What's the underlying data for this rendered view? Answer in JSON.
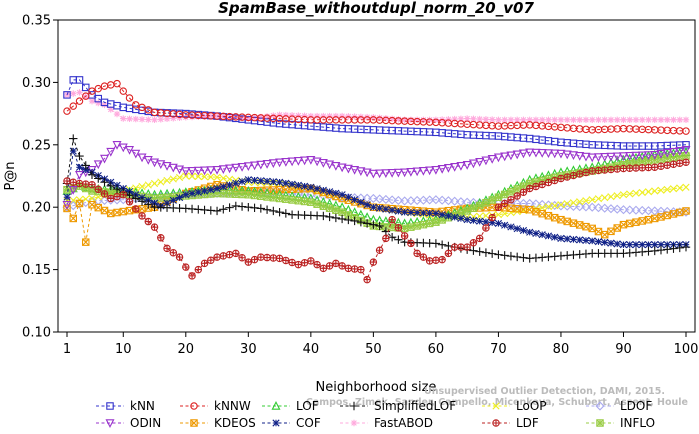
{
  "chart_data": {
    "type": "line",
    "title": "SpamBase_withoutdupl_norm_20_v07",
    "xlabel": "Neighborhood size",
    "ylabel": "P@n",
    "xlim": [
      1,
      100
    ],
    "ylim": [
      0.1,
      0.35
    ],
    "xticks": [
      "1",
      "10",
      "20",
      "30",
      "40",
      "50",
      "60",
      "70",
      "80",
      "90",
      "100"
    ],
    "yticks": [
      "0.10",
      "0.15",
      "0.20",
      "0.25",
      "0.30",
      "0.35"
    ],
    "watermark": [
      "Campos, Zimek, Sander, Campello, Micenkova, Schubert, Assent, Houle",
      "Unsupervised Outlier Detection, DAMI, 2015."
    ],
    "series": [
      {
        "name": "kNN",
        "color": "#3333cc",
        "marker": "square",
        "points": [
          [
            1,
            0.29
          ],
          [
            2,
            0.302
          ],
          [
            3,
            0.302
          ],
          [
            5,
            0.29
          ],
          [
            7,
            0.284
          ],
          [
            10,
            0.28
          ],
          [
            15,
            0.276
          ],
          [
            20,
            0.275
          ],
          [
            25,
            0.273
          ],
          [
            30,
            0.27
          ],
          [
            35,
            0.267
          ],
          [
            40,
            0.265
          ],
          [
            45,
            0.263
          ],
          [
            50,
            0.262
          ],
          [
            55,
            0.261
          ],
          [
            60,
            0.26
          ],
          [
            65,
            0.258
          ],
          [
            70,
            0.257
          ],
          [
            75,
            0.255
          ],
          [
            80,
            0.252
          ],
          [
            85,
            0.25
          ],
          [
            90,
            0.249
          ],
          [
            95,
            0.249
          ],
          [
            100,
            0.25
          ]
        ]
      },
      {
        "name": "kNNW",
        "color": "#dd2222",
        "marker": "circle",
        "points": [
          [
            1,
            0.277
          ],
          [
            2,
            0.281
          ],
          [
            3,
            0.285
          ],
          [
            5,
            0.293
          ],
          [
            7,
            0.297
          ],
          [
            9,
            0.299
          ],
          [
            10,
            0.293
          ],
          [
            12,
            0.282
          ],
          [
            15,
            0.276
          ],
          [
            20,
            0.274
          ],
          [
            30,
            0.272
          ],
          [
            40,
            0.27
          ],
          [
            50,
            0.27
          ],
          [
            60,
            0.268
          ],
          [
            70,
            0.265
          ],
          [
            75,
            0.266
          ],
          [
            80,
            0.264
          ],
          [
            85,
            0.262
          ],
          [
            90,
            0.263
          ],
          [
            95,
            0.262
          ],
          [
            100,
            0.261
          ]
        ]
      },
      {
        "name": "LOF",
        "color": "#33cc33",
        "marker": "triangle-up",
        "points": [
          [
            1,
            0.213
          ],
          [
            3,
            0.217
          ],
          [
            5,
            0.215
          ],
          [
            10,
            0.213
          ],
          [
            15,
            0.21
          ],
          [
            20,
            0.212
          ],
          [
            25,
            0.214
          ],
          [
            30,
            0.213
          ],
          [
            35,
            0.21
          ],
          [
            40,
            0.207
          ],
          [
            45,
            0.2
          ],
          [
            50,
            0.19
          ],
          [
            55,
            0.187
          ],
          [
            60,
            0.19
          ],
          [
            65,
            0.199
          ],
          [
            70,
            0.21
          ],
          [
            75,
            0.222
          ],
          [
            80,
            0.228
          ],
          [
            85,
            0.232
          ],
          [
            90,
            0.238
          ],
          [
            95,
            0.242
          ],
          [
            100,
            0.244
          ]
        ]
      },
      {
        "name": "SimplifiedLOF",
        "color": "#111111",
        "marker": "plus",
        "points": [
          [
            1,
            0.219
          ],
          [
            2,
            0.255
          ],
          [
            3,
            0.241
          ],
          [
            5,
            0.226
          ],
          [
            8,
            0.217
          ],
          [
            12,
            0.207
          ],
          [
            15,
            0.2
          ],
          [
            20,
            0.199
          ],
          [
            25,
            0.197
          ],
          [
            28,
            0.201
          ],
          [
            32,
            0.199
          ],
          [
            37,
            0.194
          ],
          [
            42,
            0.193
          ],
          [
            47,
            0.189
          ],
          [
            51,
            0.185
          ],
          [
            53,
            0.176
          ],
          [
            55,
            0.172
          ],
          [
            60,
            0.171
          ],
          [
            65,
            0.166
          ],
          [
            70,
            0.162
          ],
          [
            75,
            0.159
          ],
          [
            80,
            0.161
          ],
          [
            85,
            0.163
          ],
          [
            90,
            0.163
          ],
          [
            95,
            0.165
          ],
          [
            100,
            0.168
          ]
        ]
      },
      {
        "name": "LoOP",
        "color": "#eeee22",
        "marker": "x",
        "points": [
          [
            1,
            0.205
          ],
          [
            5,
            0.207
          ],
          [
            10,
            0.213
          ],
          [
            15,
            0.219
          ],
          [
            20,
            0.225
          ],
          [
            25,
            0.224
          ],
          [
            30,
            0.22
          ],
          [
            35,
            0.219
          ],
          [
            40,
            0.214
          ],
          [
            45,
            0.207
          ],
          [
            50,
            0.2
          ],
          [
            55,
            0.196
          ],
          [
            60,
            0.193
          ],
          [
            65,
            0.192
          ],
          [
            70,
            0.194
          ],
          [
            75,
            0.198
          ],
          [
            80,
            0.202
          ],
          [
            85,
            0.206
          ],
          [
            90,
            0.21
          ],
          [
            95,
            0.213
          ],
          [
            100,
            0.216
          ]
        ]
      },
      {
        "name": "LDOF",
        "color": "#aaaaee",
        "marker": "diamond",
        "points": [
          [
            1,
            0.2
          ],
          [
            5,
            0.205
          ],
          [
            10,
            0.206
          ],
          [
            15,
            0.208
          ],
          [
            20,
            0.21
          ],
          [
            25,
            0.211
          ],
          [
            30,
            0.212
          ],
          [
            35,
            0.212
          ],
          [
            40,
            0.21
          ],
          [
            45,
            0.208
          ],
          [
            50,
            0.207
          ],
          [
            55,
            0.205
          ],
          [
            60,
            0.206
          ],
          [
            65,
            0.204
          ],
          [
            70,
            0.203
          ],
          [
            75,
            0.203
          ],
          [
            80,
            0.201
          ],
          [
            85,
            0.2
          ],
          [
            90,
            0.198
          ],
          [
            95,
            0.197
          ],
          [
            100,
            0.196
          ]
        ]
      },
      {
        "name": "ODIN",
        "color": "#9933cc",
        "marker": "triangle-down",
        "points": [
          [
            1,
            0.202
          ],
          [
            3,
            0.226
          ],
          [
            5,
            0.23
          ],
          [
            7,
            0.239
          ],
          [
            9,
            0.25
          ],
          [
            11,
            0.246
          ],
          [
            13,
            0.24
          ],
          [
            15,
            0.236
          ],
          [
            20,
            0.229
          ],
          [
            25,
            0.23
          ],
          [
            30,
            0.233
          ],
          [
            35,
            0.236
          ],
          [
            40,
            0.238
          ],
          [
            45,
            0.232
          ],
          [
            50,
            0.227
          ],
          [
            55,
            0.228
          ],
          [
            60,
            0.23
          ],
          [
            65,
            0.234
          ],
          [
            70,
            0.24
          ],
          [
            75,
            0.244
          ],
          [
            80,
            0.243
          ],
          [
            85,
            0.24
          ],
          [
            90,
            0.241
          ],
          [
            95,
            0.242
          ],
          [
            100,
            0.246
          ]
        ]
      },
      {
        "name": "KDEOS",
        "color": "#ee9900",
        "marker": "square-x",
        "points": [
          [
            1,
            0.199
          ],
          [
            2,
            0.191
          ],
          [
            3,
            0.203
          ],
          [
            4,
            0.172
          ],
          [
            5,
            0.202
          ],
          [
            8,
            0.195
          ],
          [
            12,
            0.198
          ],
          [
            15,
            0.2
          ],
          [
            20,
            0.211
          ],
          [
            25,
            0.218
          ],
          [
            30,
            0.213
          ],
          [
            35,
            0.214
          ],
          [
            40,
            0.215
          ],
          [
            45,
            0.207
          ],
          [
            50,
            0.2
          ],
          [
            55,
            0.198
          ],
          [
            60,
            0.196
          ],
          [
            65,
            0.199
          ],
          [
            70,
            0.2
          ],
          [
            75,
            0.198
          ],
          [
            80,
            0.19
          ],
          [
            85,
            0.183
          ],
          [
            87,
            0.178
          ],
          [
            90,
            0.186
          ],
          [
            95,
            0.191
          ],
          [
            100,
            0.197
          ]
        ]
      },
      {
        "name": "COF",
        "color": "#112288",
        "marker": "star",
        "points": [
          [
            1,
            0.208
          ],
          [
            2,
            0.245
          ],
          [
            3,
            0.232
          ],
          [
            5,
            0.228
          ],
          [
            8,
            0.22
          ],
          [
            12,
            0.21
          ],
          [
            16,
            0.201
          ],
          [
            20,
            0.21
          ],
          [
            25,
            0.215
          ],
          [
            30,
            0.222
          ],
          [
            35,
            0.22
          ],
          [
            40,
            0.216
          ],
          [
            45,
            0.21
          ],
          [
            50,
            0.2
          ],
          [
            55,
            0.196
          ],
          [
            60,
            0.195
          ],
          [
            65,
            0.19
          ],
          [
            70,
            0.187
          ],
          [
            75,
            0.18
          ],
          [
            80,
            0.175
          ],
          [
            85,
            0.173
          ],
          [
            90,
            0.17
          ],
          [
            95,
            0.17
          ],
          [
            100,
            0.17
          ]
        ]
      },
      {
        "name": "FastABOD",
        "color": "#ffaadd",
        "marker": "cross",
        "points": [
          [
            1,
            0.29
          ],
          [
            3,
            0.292
          ],
          [
            5,
            0.285
          ],
          [
            7,
            0.282
          ],
          [
            10,
            0.271
          ],
          [
            15,
            0.27
          ],
          [
            20,
            0.272
          ],
          [
            25,
            0.273
          ],
          [
            30,
            0.271
          ],
          [
            35,
            0.274
          ],
          [
            40,
            0.273
          ],
          [
            45,
            0.273
          ],
          [
            50,
            0.272
          ],
          [
            55,
            0.27
          ],
          [
            60,
            0.27
          ],
          [
            65,
            0.271
          ],
          [
            70,
            0.27
          ],
          [
            75,
            0.27
          ],
          [
            80,
            0.27
          ],
          [
            85,
            0.27
          ],
          [
            90,
            0.27
          ],
          [
            95,
            0.27
          ],
          [
            100,
            0.27
          ]
        ]
      },
      {
        "name": "LDF",
        "color": "#bb2222",
        "marker": "circle-plus",
        "points": [
          [
            1,
            0.221
          ],
          [
            3,
            0.219
          ],
          [
            5,
            0.218
          ],
          [
            8,
            0.207
          ],
          [
            10,
            0.21
          ],
          [
            13,
            0.193
          ],
          [
            15,
            0.184
          ],
          [
            17,
            0.167
          ],
          [
            19,
            0.16
          ],
          [
            20,
            0.152
          ],
          [
            21,
            0.145
          ],
          [
            23,
            0.155
          ],
          [
            25,
            0.16
          ],
          [
            28,
            0.163
          ],
          [
            30,
            0.156
          ],
          [
            32,
            0.16
          ],
          [
            35,
            0.159
          ],
          [
            38,
            0.154
          ],
          [
            40,
            0.157
          ],
          [
            42,
            0.151
          ],
          [
            44,
            0.155
          ],
          [
            46,
            0.151
          ],
          [
            48,
            0.15
          ],
          [
            49,
            0.142
          ],
          [
            50,
            0.156
          ],
          [
            52,
            0.175
          ],
          [
            53,
            0.19
          ],
          [
            55,
            0.177
          ],
          [
            56,
            0.171
          ],
          [
            57,
            0.163
          ],
          [
            59,
            0.157
          ],
          [
            61,
            0.158
          ],
          [
            63,
            0.168
          ],
          [
            65,
            0.168
          ],
          [
            67,
            0.175
          ],
          [
            70,
            0.2
          ],
          [
            75,
            0.215
          ],
          [
            80,
            0.223
          ],
          [
            85,
            0.229
          ],
          [
            90,
            0.231
          ],
          [
            95,
            0.232
          ],
          [
            100,
            0.236
          ]
        ]
      },
      {
        "name": "INFLO",
        "color": "#99cc44",
        "marker": "square-cross",
        "points": [
          [
            1,
            0.214
          ],
          [
            3,
            0.217
          ],
          [
            5,
            0.213
          ],
          [
            10,
            0.211
          ],
          [
            15,
            0.207
          ],
          [
            20,
            0.209
          ],
          [
            25,
            0.211
          ],
          [
            30,
            0.21
          ],
          [
            35,
            0.207
          ],
          [
            40,
            0.204
          ],
          [
            45,
            0.196
          ],
          [
            50,
            0.185
          ],
          [
            55,
            0.183
          ],
          [
            60,
            0.188
          ],
          [
            65,
            0.197
          ],
          [
            70,
            0.208
          ],
          [
            75,
            0.219
          ],
          [
            80,
            0.225
          ],
          [
            85,
            0.229
          ],
          [
            90,
            0.234
          ],
          [
            95,
            0.238
          ],
          [
            100,
            0.241
          ]
        ]
      }
    ]
  }
}
